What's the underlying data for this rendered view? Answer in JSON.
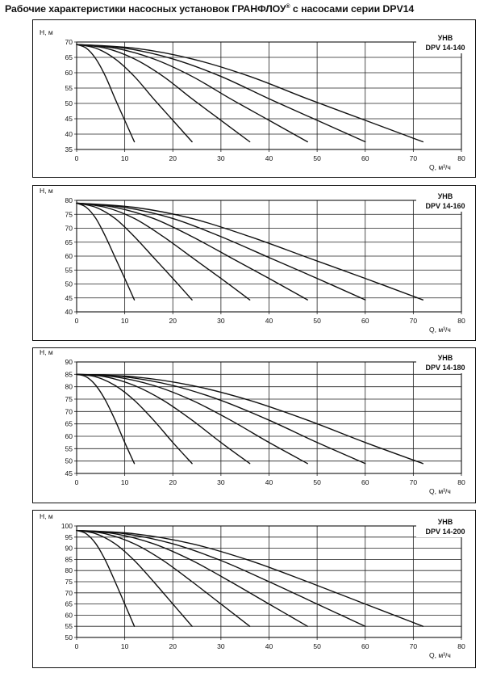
{
  "title": {
    "main": "Рабочие характеристики насосных установок  ГРАНФЛОУ",
    "reg": "®",
    "rest": " с насосами серии DPV14"
  },
  "colors": {
    "curve": "#111111",
    "grid": "#222222",
    "frame": "#111111"
  },
  "chart_data": [
    {
      "type": "line",
      "label_top": "УНВ",
      "label_model": "DPV 14-140",
      "ylabel": "H, м",
      "xlabel": "Q, м³/ч",
      "xlim": [
        0,
        80
      ],
      "ylim": [
        35,
        70
      ],
      "xticks": [
        "0",
        "10",
        "20",
        "30",
        "40",
        "50",
        "60",
        "70",
        "80"
      ],
      "yticks": [
        "35",
        "40",
        "45",
        "50",
        "55",
        "60",
        "65",
        "70"
      ],
      "grid": "vertical-and-horizontal",
      "shutoff_head": 69.2,
      "series": [
        {
          "pumps": 1,
          "x": [
            0,
            2,
            4,
            6,
            8,
            10,
            12
          ],
          "y": [
            69.2,
            68.0,
            64.5,
            58.8,
            51.5,
            44.5,
            37.5
          ]
        },
        {
          "pumps": 2,
          "x": [
            0,
            4,
            8,
            12,
            16,
            20,
            24
          ],
          "y": [
            69.2,
            68.0,
            64.5,
            58.8,
            51.5,
            44.5,
            37.5
          ]
        },
        {
          "pumps": 3,
          "x": [
            0,
            6,
            12,
            18,
            24,
            30,
            36
          ],
          "y": [
            69.2,
            68.0,
            64.5,
            58.8,
            51.5,
            44.5,
            37.5
          ]
        },
        {
          "pumps": 4,
          "x": [
            0,
            8,
            16,
            24,
            32,
            40,
            48
          ],
          "y": [
            69.2,
            68.0,
            64.5,
            58.8,
            51.5,
            44.5,
            37.5
          ]
        },
        {
          "pumps": 5,
          "x": [
            0,
            10,
            20,
            30,
            40,
            50,
            60
          ],
          "y": [
            69.2,
            68.0,
            64.5,
            58.8,
            51.5,
            44.5,
            37.5
          ]
        },
        {
          "pumps": 6,
          "x": [
            0,
            12,
            24,
            36,
            48,
            60,
            72
          ],
          "y": [
            69.2,
            68.0,
            64.5,
            58.8,
            51.5,
            44.5,
            37.5
          ]
        }
      ]
    },
    {
      "type": "line",
      "label_top": "УНВ",
      "label_model": "DPV 14-160",
      "ylabel": "H, м",
      "xlabel": "Q, м³/ч",
      "xlim": [
        0,
        80
      ],
      "ylim": [
        40,
        80
      ],
      "xticks": [
        "0",
        "10",
        "20",
        "30",
        "40",
        "50",
        "60",
        "70",
        "80"
      ],
      "yticks": [
        "40",
        "45",
        "50",
        "55",
        "60",
        "65",
        "70",
        "75",
        "80"
      ],
      "grid": "vertical-and-horizontal",
      "shutoff_head": 79,
      "series": [
        {
          "pumps": 1,
          "x": [
            0,
            2,
            4,
            6,
            8,
            10,
            12
          ],
          "y": [
            79.0,
            77.5,
            73.5,
            67.0,
            59.5,
            52.0,
            44.3
          ]
        },
        {
          "pumps": 2,
          "x": [
            0,
            4,
            8,
            12,
            16,
            20,
            24
          ],
          "y": [
            79.0,
            77.5,
            73.5,
            67.0,
            59.5,
            52.0,
            44.3
          ]
        },
        {
          "pumps": 3,
          "x": [
            0,
            6,
            12,
            18,
            24,
            30,
            36
          ],
          "y": [
            79.0,
            77.5,
            73.5,
            67.0,
            59.5,
            52.0,
            44.3
          ]
        },
        {
          "pumps": 4,
          "x": [
            0,
            8,
            16,
            24,
            32,
            40,
            48
          ],
          "y": [
            79.0,
            77.5,
            73.5,
            67.0,
            59.5,
            52.0,
            44.3
          ]
        },
        {
          "pumps": 5,
          "x": [
            0,
            10,
            20,
            30,
            40,
            50,
            60
          ],
          "y": [
            79.0,
            77.5,
            73.5,
            67.0,
            59.5,
            52.0,
            44.3
          ]
        },
        {
          "pumps": 6,
          "x": [
            0,
            12,
            24,
            36,
            48,
            60,
            72
          ],
          "y": [
            79.0,
            77.5,
            73.5,
            67.0,
            59.5,
            52.0,
            44.3
          ]
        }
      ]
    },
    {
      "type": "line",
      "label_top": "УНВ",
      "label_model": "DPV 14-180",
      "ylabel": "H, м",
      "xlabel": "Q, м³/ч",
      "xlim": [
        0,
        80
      ],
      "ylim": [
        45,
        90
      ],
      "xticks": [
        "0",
        "10",
        "20",
        "30",
        "40",
        "50",
        "60",
        "70",
        "80"
      ],
      "yticks": [
        "45",
        "50",
        "55",
        "60",
        "65",
        "70",
        "75",
        "80",
        "85",
        "90"
      ],
      "grid": "vertical-and-horizontal",
      "shutoff_head": 85,
      "series": [
        {
          "pumps": 1,
          "x": [
            0,
            2,
            4,
            6,
            8,
            10,
            12
          ],
          "y": [
            85.0,
            84.0,
            80.5,
            74.5,
            66.5,
            57.5,
            49.0
          ]
        },
        {
          "pumps": 2,
          "x": [
            0,
            4,
            8,
            12,
            16,
            20,
            24
          ],
          "y": [
            85.0,
            84.0,
            80.5,
            74.5,
            66.5,
            57.5,
            49.0
          ]
        },
        {
          "pumps": 3,
          "x": [
            0,
            6,
            12,
            18,
            24,
            30,
            36
          ],
          "y": [
            85.0,
            84.0,
            80.5,
            74.5,
            66.5,
            57.5,
            49.0
          ]
        },
        {
          "pumps": 4,
          "x": [
            0,
            8,
            16,
            24,
            32,
            40,
            48
          ],
          "y": [
            85.0,
            84.0,
            80.5,
            74.5,
            66.5,
            57.5,
            49.0
          ]
        },
        {
          "pumps": 5,
          "x": [
            0,
            10,
            20,
            30,
            40,
            50,
            60
          ],
          "y": [
            85.0,
            84.0,
            80.5,
            74.5,
            66.5,
            57.5,
            49.0
          ]
        },
        {
          "pumps": 6,
          "x": [
            0,
            12,
            24,
            36,
            48,
            60,
            72
          ],
          "y": [
            85.0,
            84.0,
            80.5,
            74.5,
            66.5,
            57.5,
            49.0
          ]
        }
      ]
    },
    {
      "type": "line",
      "label_top": "УНВ",
      "label_model": "DPV 14-200",
      "ylabel": "H, м",
      "xlabel": "Q, м³/ч",
      "xlim": [
        0,
        80
      ],
      "ylim": [
        50,
        100
      ],
      "xticks": [
        "0",
        "10",
        "20",
        "30",
        "40",
        "50",
        "60",
        "70",
        "80"
      ],
      "yticks": [
        "50",
        "55",
        "60",
        "65",
        "70",
        "75",
        "80",
        "85",
        "90",
        "95",
        "100"
      ],
      "grid": "vertical-and-horizontal",
      "shutoff_head": 98,
      "series": [
        {
          "pumps": 1,
          "x": [
            0,
            2,
            4,
            6,
            8,
            10,
            12
          ],
          "y": [
            98.0,
            96.5,
            92.0,
            84.5,
            75.0,
            65.0,
            55.0
          ]
        },
        {
          "pumps": 2,
          "x": [
            0,
            4,
            8,
            12,
            16,
            20,
            24
          ],
          "y": [
            98.0,
            96.5,
            92.0,
            84.5,
            75.0,
            65.0,
            55.0
          ]
        },
        {
          "pumps": 3,
          "x": [
            0,
            6,
            12,
            18,
            24,
            30,
            36
          ],
          "y": [
            98.0,
            96.5,
            92.0,
            84.5,
            75.0,
            65.0,
            55.0
          ]
        },
        {
          "pumps": 4,
          "x": [
            0,
            8,
            16,
            24,
            32,
            40,
            48
          ],
          "y": [
            98.0,
            96.5,
            92.0,
            84.5,
            75.0,
            65.0,
            55.0
          ]
        },
        {
          "pumps": 5,
          "x": [
            0,
            10,
            20,
            30,
            40,
            50,
            60
          ],
          "y": [
            98.0,
            96.5,
            92.0,
            84.5,
            75.0,
            65.0,
            55.0
          ]
        },
        {
          "pumps": 6,
          "x": [
            0,
            12,
            24,
            36,
            48,
            60,
            72
          ],
          "y": [
            98.0,
            96.5,
            92.0,
            84.5,
            75.0,
            65.0,
            55.0
          ]
        }
      ]
    }
  ]
}
